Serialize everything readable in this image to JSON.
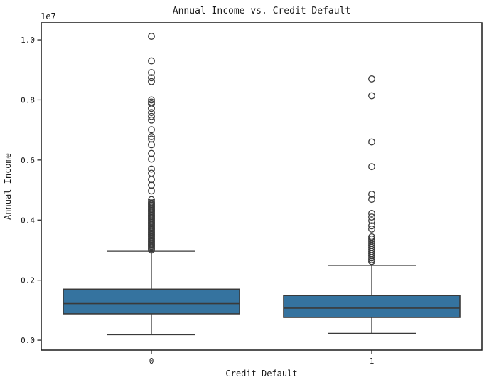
{
  "title": "Annual Income vs. Credit Default",
  "axes": {
    "x_label": "Credit Default",
    "y_label": "Annual Income",
    "y_offset_text": "1e7",
    "x_tick_labels": [
      "0",
      "1"
    ],
    "y_tick_labels": [
      "0.0",
      "0.2",
      "0.4",
      "0.6",
      "0.8",
      "1.0"
    ],
    "y_tick_values_1e7": [
      0.0,
      0.2,
      0.4,
      0.6,
      0.8,
      1.0
    ]
  },
  "colors": {
    "box_fill": "#35739f",
    "box_edge": "#3a3a3a",
    "whisker": "#3a3a3a",
    "median": "#3a3a3a",
    "outlier_edge": "#3a3a3a",
    "spine": "#1a1a1a",
    "background": "#ffffff"
  },
  "chart_data": {
    "type": "boxplot",
    "title": "Annual Income vs. Credit Default",
    "xlabel": "Credit Default",
    "ylabel": "Annual Income",
    "y_unit_multiplier": "1e7",
    "categories": [
      "0",
      "1"
    ],
    "ylim_1e7": [
      -0.033,
      1.057
    ],
    "grid": false,
    "legend": "none",
    "box_width_frac": 0.8,
    "cap_width_frac": 0.4,
    "series": [
      {
        "category": "0",
        "whisker_low_1e7": 0.018,
        "q1_1e7": 0.088,
        "median_1e7": 0.122,
        "q3_1e7": 0.17,
        "whisker_high_1e7": 0.296,
        "outliers_1e7": [
          1.012,
          0.93,
          0.891,
          0.874,
          0.861,
          0.8,
          0.793,
          0.787,
          0.772,
          0.758,
          0.745,
          0.733,
          0.701,
          0.678,
          0.67,
          0.651,
          0.622,
          0.603,
          0.57,
          0.556,
          0.535,
          0.516,
          0.497,
          0.468,
          0.46,
          0.456,
          0.452,
          0.448,
          0.444,
          0.44,
          0.436,
          0.432,
          0.428,
          0.424,
          0.42,
          0.416,
          0.412,
          0.408,
          0.404,
          0.4,
          0.396,
          0.392,
          0.388,
          0.384,
          0.38,
          0.376,
          0.372,
          0.368,
          0.364,
          0.36,
          0.356,
          0.352,
          0.348,
          0.344,
          0.34,
          0.336,
          0.332,
          0.328,
          0.324,
          0.32,
          0.316,
          0.312,
          0.308,
          0.304,
          0.3
        ]
      },
      {
        "category": "1",
        "whisker_low_1e7": 0.023,
        "q1_1e7": 0.076,
        "median_1e7": 0.107,
        "q3_1e7": 0.149,
        "whisker_high_1e7": 0.249,
        "outliers_1e7": [
          0.87,
          0.814,
          0.66,
          0.578,
          0.486,
          0.469,
          0.422,
          0.41,
          0.398,
          0.381,
          0.37,
          0.344,
          0.337,
          0.33,
          0.323,
          0.316,
          0.309,
          0.302,
          0.295,
          0.288,
          0.281,
          0.274,
          0.268,
          0.262
        ]
      }
    ]
  }
}
